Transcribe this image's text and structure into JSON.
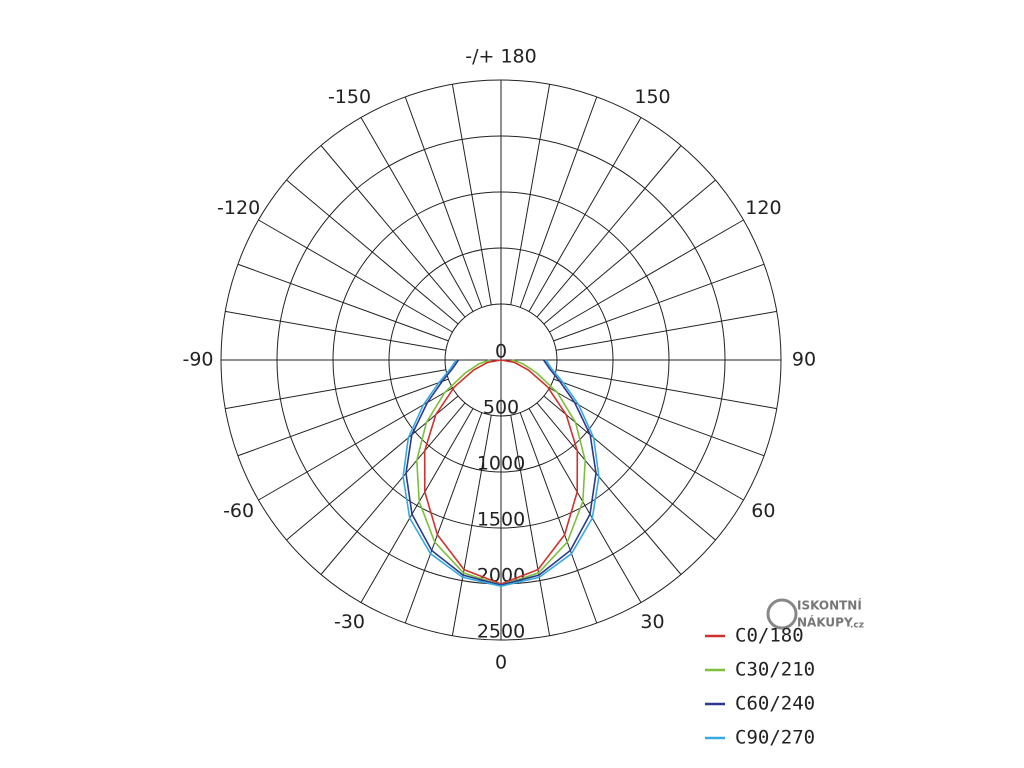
{
  "chart_data": {
    "type": "polar",
    "theta": [
      -90,
      -80,
      -70,
      -60,
      -50,
      -40,
      -30,
      -20,
      -10,
      0,
      10,
      20,
      30,
      40,
      50,
      60,
      70,
      80,
      90
    ],
    "series": [
      {
        "name": "C0/180",
        "color": "#d0312d",
        "values": [
          0,
          120,
          260,
          480,
          760,
          1060,
          1360,
          1660,
          1900,
          2000,
          1900,
          1660,
          1360,
          1060,
          760,
          480,
          260,
          120,
          0
        ]
      },
      {
        "name": "C30/210",
        "color": "#7cbf3a",
        "values": [
          100,
          200,
          340,
          580,
          870,
          1170,
          1460,
          1730,
          1930,
          2010,
          1930,
          1730,
          1460,
          1170,
          870,
          580,
          340,
          200,
          100
        ]
      },
      {
        "name": "C60/240",
        "color": "#2d3a8c",
        "values": [
          380,
          440,
          560,
          760,
          1040,
          1320,
          1590,
          1810,
          1950,
          2010,
          1950,
          1810,
          1590,
          1320,
          1040,
          760,
          560,
          440,
          380
        ]
      },
      {
        "name": "C90/270",
        "color": "#36a9e1",
        "values": [
          400,
          460,
          590,
          800,
          1080,
          1360,
          1630,
          1840,
          1970,
          2020,
          1970,
          1840,
          1630,
          1360,
          1080,
          800,
          590,
          460,
          400
        ]
      }
    ],
    "rlim": [
      0,
      2500
    ],
    "rticks": [
      0,
      500,
      1000,
      1500,
      2000,
      2500
    ],
    "thetaticks": [
      {
        "value": 180,
        "label": "-/+ 180"
      },
      150,
      120,
      90,
      60,
      30,
      0,
      -30,
      -60,
      -90,
      -120,
      -150
    ],
    "angle_grid_step": 10,
    "legend": "lower right"
  },
  "watermark": {
    "line1": "ISKONTNÍ",
    "line2": "NÁKUPY",
    "suffix": ".cz"
  }
}
